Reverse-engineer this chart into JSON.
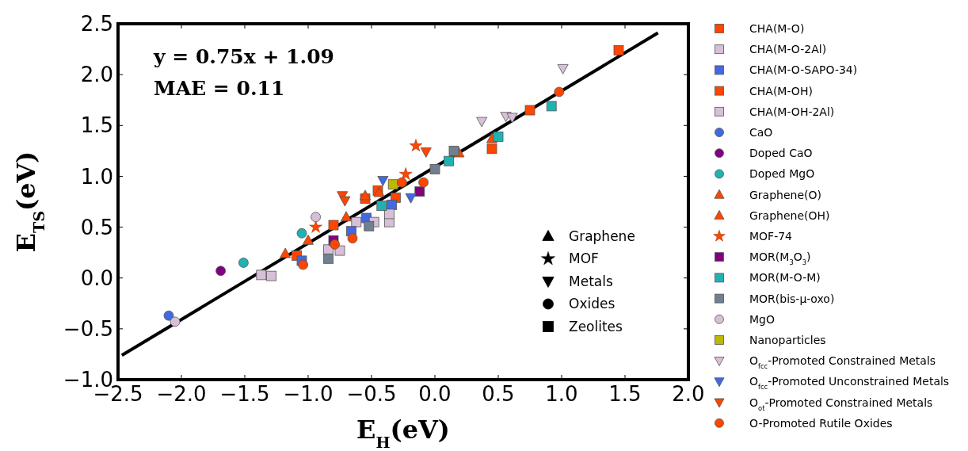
{
  "chart_data": {
    "type": "scatter",
    "xlabel": "E$_{H}$(eV)",
    "ylabel": "E$_{TS}$(eV)",
    "annotations": [
      "y = 0.75x + 1.09",
      "MAE = 0.11",
      "Graphene",
      "MOF",
      "Metals",
      "Oxides",
      "Zeolites"
    ],
    "xlim": [
      -2.5,
      2.0
    ],
    "ylim": [
      -1.0,
      2.5
    ],
    "xticks": [
      {
        "value": -2.5,
        "label": "−2.5"
      },
      {
        "value": -2.0,
        "label": "−2.0"
      },
      {
        "value": -1.5,
        "label": "−1.5"
      },
      {
        "value": -1.0,
        "label": "−1.0"
      },
      {
        "value": -0.5,
        "label": "−0.5"
      },
      {
        "value": 0,
        "label": "0.0"
      },
      {
        "value": 0.5,
        "label": "0.5"
      },
      {
        "value": 1.0,
        "label": "1.0"
      },
      {
        "value": 1.5,
        "label": "1.5"
      },
      {
        "value": 2.0,
        "label": "2.0"
      }
    ],
    "yticks": [
      {
        "value": -1.0,
        "label": "−1.0"
      },
      {
        "value": -0.5,
        "label": "−0.5"
      },
      {
        "value": 0,
        "label": "0.0"
      },
      {
        "value": 0.5,
        "label": "0.5"
      },
      {
        "value": 1.0,
        "label": "1.0"
      },
      {
        "value": 1.5,
        "label": "1.5"
      },
      {
        "value": 2.0,
        "label": "2.0"
      },
      {
        "value": 2.5,
        "label": "2.5"
      }
    ],
    "legend": "right",
    "series": [
      {
        "type": "line",
        "color": "#000000",
        "x": [
          -2.47,
          1.76
        ],
        "values": [
          -0.76,
          2.41
        ],
        "line_style": "solid"
      },
      {
        "name": "CHA(M-O)",
        "color": "#ff4500",
        "marker": "square",
        "x": [
          -1.09,
          -0.8,
          -0.45,
          -0.31
        ],
        "values": [
          0.22,
          0.52,
          0.86,
          0.79
        ]
      },
      {
        "name": "CHA(M-O-2Al)",
        "color": "#d8bfd8",
        "marker": "square",
        "x": [
          -1.29,
          -0.84,
          -0.62,
          -0.36
        ],
        "values": [
          0.02,
          0.28,
          0.55,
          0.55
        ]
      },
      {
        "name": "CHA(M-O-SAPO-34)",
        "color": "#4169e1",
        "marker": "square",
        "x": [
          -1.05,
          -0.66,
          -0.54,
          -0.34
        ],
        "values": [
          0.17,
          0.46,
          0.59,
          0.72
        ]
      },
      {
        "name": "CHA(M-OH)",
        "color": "#ff4500",
        "marker": "square",
        "x": [
          -0.55,
          0.45,
          0.75,
          1.45
        ],
        "values": [
          0.78,
          1.27,
          1.65,
          2.24
        ]
      },
      {
        "name": "CHA(M-OH-2Al)",
        "color": "#d8bfd8",
        "marker": "square",
        "x": [
          -1.37,
          -0.75,
          -0.48,
          -0.36
        ],
        "values": [
          0.03,
          0.27,
          0.55,
          0.63
        ]
      },
      {
        "name": "CaO",
        "color": "#4169e1",
        "marker": "circle",
        "x": [
          -2.1
        ],
        "values": [
          -0.37
        ]
      },
      {
        "name": "Doped CaO",
        "color": "#800080",
        "marker": "circle",
        "x": [
          -1.69
        ],
        "values": [
          0.07
        ]
      },
      {
        "name": "Doped MgO",
        "color": "#20b2b2",
        "marker": "circle",
        "x": [
          -1.51,
          -1.05
        ],
        "values": [
          0.15,
          0.44
        ]
      },
      {
        "name": "Graphene(O)",
        "color": "#ff4500",
        "marker": "triangle",
        "x": [
          -1.18,
          -1.0,
          -0.7,
          0.19,
          0.45
        ],
        "values": [
          0.24,
          0.37,
          0.6,
          1.23,
          1.37
        ]
      },
      {
        "name": "Graphene(OH)",
        "color": "#ff4500",
        "marker": "triangle",
        "x": [
          -0.55,
          -0.44
        ],
        "values": [
          0.81,
          0.84
        ]
      },
      {
        "name": "MOF-74",
        "color": "#ff4500",
        "marker": "star",
        "x": [
          -0.94,
          -0.23,
          -0.15
        ],
        "values": [
          0.5,
          1.02,
          1.3
        ]
      },
      {
        "name": "MOR(M$_{3}$O$_{3}$)",
        "color": "#800080",
        "marker": "square",
        "x": [
          -0.8,
          -0.12
        ],
        "values": [
          0.37,
          0.85
        ]
      },
      {
        "name": "MOR(M-O-M)",
        "color": "#20b2b2",
        "marker": "square",
        "x": [
          -0.42,
          0.11,
          0.5,
          0.92
        ],
        "values": [
          0.71,
          1.15,
          1.39,
          1.69
        ]
      },
      {
        "name": "MOR(bis-μ-oxo)",
        "color": "#708090",
        "marker": "square",
        "x": [
          -0.84,
          -0.52,
          0.0,
          0.15
        ],
        "values": [
          0.19,
          0.51,
          1.07,
          1.25
        ]
      },
      {
        "name": "MgO",
        "color": "#d8bfd8",
        "marker": "circle",
        "x": [
          -2.05,
          -0.94
        ],
        "values": [
          -0.43,
          0.6
        ]
      },
      {
        "name": "Nanoparticles",
        "color": "#bdb800",
        "marker": "square",
        "x": [
          -0.33
        ],
        "values": [
          0.92
        ]
      },
      {
        "name": "O$_{fcc}$-Promoted Constrained Metals",
        "color": "#d8bfd8",
        "marker": "triangle-down",
        "x": [
          0.37,
          0.56,
          0.61,
          1.01
        ],
        "values": [
          1.54,
          1.59,
          1.58,
          2.06
        ]
      },
      {
        "name": "O$_{fcc}$-Promoted Unconstrained Metals",
        "color": "#4169e1",
        "marker": "triangle-down",
        "x": [
          -0.41,
          -0.19
        ],
        "values": [
          0.96,
          0.79
        ]
      },
      {
        "name": "O$_{ot}$-Promoted Constrained Metals",
        "color": "#ff4500",
        "marker": "triangle-down",
        "x": [
          -0.73,
          -0.71,
          -0.07
        ],
        "values": [
          0.81,
          0.76,
          1.24
        ]
      },
      {
        "name": "O-Promoted Rutile Oxides",
        "color": "#ff4500",
        "marker": "circle",
        "x": [
          -1.04,
          -0.79,
          -0.65,
          -0.26,
          -0.09,
          0.98
        ],
        "values": [
          0.13,
          0.33,
          0.39,
          0.94,
          0.94,
          1.83
        ]
      }
    ]
  }
}
